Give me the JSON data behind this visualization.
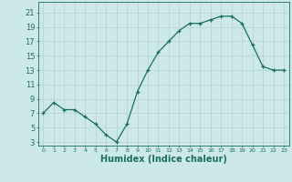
{
  "x": [
    0,
    1,
    2,
    3,
    4,
    5,
    6,
    7,
    8,
    9,
    10,
    11,
    12,
    13,
    14,
    15,
    16,
    17,
    18,
    19,
    20,
    21,
    22,
    23
  ],
  "y": [
    7.0,
    8.5,
    7.5,
    7.5,
    6.5,
    5.5,
    4.0,
    3.0,
    5.5,
    10.0,
    13.0,
    15.5,
    17.0,
    18.5,
    19.5,
    19.5,
    20.0,
    20.5,
    20.5,
    19.5,
    16.5,
    13.5,
    13.0,
    13.0
  ],
  "line_color": "#1a6e60",
  "marker": "+",
  "marker_size": 3.5,
  "bg_color": "#cde8e8",
  "grid_color": "#b8d4d4",
  "axis_color": "#1a6e60",
  "xlabel": "Humidex (Indice chaleur)",
  "xlabel_fontsize": 7,
  "ytick_fontsize": 6,
  "xtick_fontsize": 4.5,
  "ylabel_ticks": [
    3,
    5,
    7,
    9,
    11,
    13,
    15,
    17,
    19,
    21
  ],
  "xlim": [
    -0.5,
    23.5
  ],
  "ylim": [
    2.5,
    22.5
  ]
}
